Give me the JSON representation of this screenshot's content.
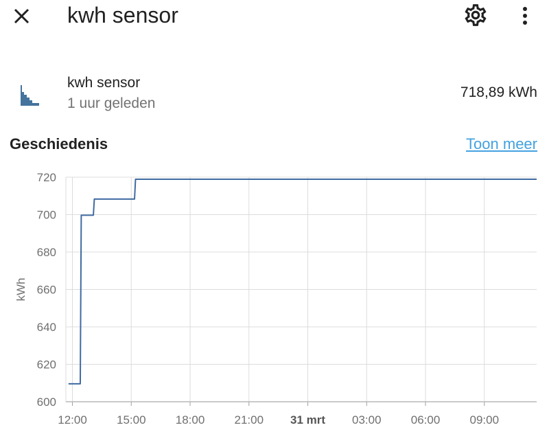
{
  "dialog": {
    "title": "kwh sensor",
    "close_icon": "close-icon",
    "settings_icon": "cog-icon",
    "more_icon": "dots-vertical-icon"
  },
  "entity": {
    "icon": "chart-histogram-icon",
    "name": "kwh sensor",
    "last_changed": "1 uur geleden",
    "state": "718,89 kWh"
  },
  "history": {
    "title": "Geschiedenis",
    "show_more": "Toon meer"
  },
  "colors": {
    "line": "#3f6aa1",
    "link": "#44a1e0",
    "icon": "#44739e",
    "grid": "#dcdcdc"
  },
  "chart_data": {
    "type": "line",
    "step": true,
    "ylabel": "kWh",
    "ylim": [
      600,
      720
    ],
    "yticks": [
      600,
      620,
      640,
      660,
      680,
      700,
      720
    ],
    "xlim": [
      "2024-03-30 11:40",
      "2024-03-31 11:40"
    ],
    "x_ticks": [
      {
        "label": "12:00",
        "time": "2024-03-30 12:00",
        "bold": false
      },
      {
        "label": "15:00",
        "time": "2024-03-30 15:00",
        "bold": false
      },
      {
        "label": "18:00",
        "time": "2024-03-30 18:00",
        "bold": false
      },
      {
        "label": "21:00",
        "time": "2024-03-30 21:00",
        "bold": false
      },
      {
        "label": "31 mrt",
        "time": "2024-03-31 00:00",
        "bold": true
      },
      {
        "label": "03:00",
        "time": "2024-03-31 03:00",
        "bold": false
      },
      {
        "label": "06:00",
        "time": "2024-03-31 06:00",
        "bold": false
      },
      {
        "label": "09:00",
        "time": "2024-03-31 09:00",
        "bold": false
      }
    ],
    "grid": true,
    "series": [
      {
        "x": [
          "2024-03-30 11:48",
          "2024-03-30 12:24",
          "2024-03-30 12:27",
          "2024-03-30 13:04",
          "2024-03-30 13:07",
          "2024-03-30 15:10",
          "2024-03-30 15:13",
          "2024-03-31 11:40"
        ],
        "values": [
          609.6,
          609.6,
          699.7,
          699.7,
          708.3,
          708.3,
          718.9,
          718.9
        ]
      }
    ]
  }
}
